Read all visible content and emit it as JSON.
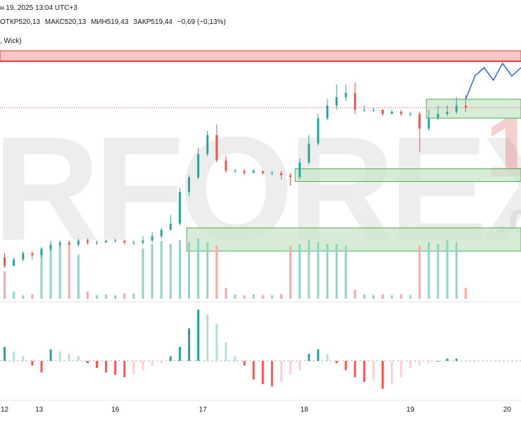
{
  "header": {
    "date_line": "н 19, 2025 13:04 UTC+3",
    "ohlc": {
      "open": "ОТКР520,13",
      "high": "МАКС520,13",
      "low": "МИН519,43",
      "close": "ЗАКР519,44",
      "change": "−0,69 (−0,13%)"
    },
    "indicator_label": ", Wick)"
  },
  "watermark": {
    "text": "RFOREX",
    "suffix": "1",
    "tld": ".c"
  },
  "colors": {
    "up": "#26a69a",
    "down": "#ef5350",
    "vol_up": "#8fd3c9",
    "vol_down": "#f7a9a7",
    "osc_up_strong": "#26a69a",
    "osc_up_weak": "#b2dfdb",
    "osc_down_strong": "#ff5252",
    "osc_down_weak": "#ffcdd2",
    "zone_fill": "#c8e6c9",
    "zone_border": "#4caf50",
    "res_fill": "#f8c6c6",
    "res_border": "#e53935",
    "forecast": "#2962ff"
  },
  "chart_data": {
    "type": "candlestick",
    "x_tick_labels": [
      "12",
      "13",
      "16",
      "17",
      "18",
      "19",
      "20"
    ],
    "candles": [
      [
        0,
        520,
        516,
        522,
        515
      ],
      [
        4,
        516,
        519,
        520,
        518
      ],
      [
        8,
        519,
        522,
        523,
        518
      ],
      [
        12,
        522,
        521,
        523,
        519
      ],
      [
        16,
        521,
        524,
        525,
        520
      ],
      [
        20,
        524,
        526,
        528,
        523
      ],
      [
        24,
        526,
        527,
        528,
        525
      ],
      [
        28,
        527,
        526,
        528,
        526
      ],
      [
        32,
        526,
        528,
        529,
        525
      ],
      [
        36,
        528,
        527,
        529,
        526
      ],
      [
        40,
        527,
        527,
        528,
        526
      ],
      [
        44,
        527,
        528,
        528,
        527
      ],
      [
        48,
        528,
        528,
        529,
        527
      ],
      [
        52,
        528,
        527,
        528,
        526
      ],
      [
        56,
        527,
        527,
        528,
        526
      ],
      [
        60,
        527,
        528,
        530,
        526
      ],
      [
        64,
        528,
        530,
        532,
        527
      ],
      [
        68,
        530,
        533,
        534,
        529
      ],
      [
        72,
        533,
        536,
        540,
        533
      ],
      [
        76,
        536,
        551,
        553,
        535
      ],
      [
        80,
        551,
        558,
        559,
        549
      ],
      [
        84,
        558,
        569,
        572,
        557
      ],
      [
        88,
        569,
        578,
        580,
        568
      ],
      [
        92,
        578,
        566,
        583,
        565
      ],
      [
        96,
        566,
        561,
        568,
        560
      ],
      [
        100,
        561,
        561,
        562,
        560
      ],
      [
        104,
        561,
        560,
        562,
        559
      ],
      [
        108,
        560,
        561,
        562,
        560
      ],
      [
        112,
        561,
        560,
        561,
        559
      ],
      [
        116,
        560,
        560,
        561,
        559
      ],
      [
        120,
        560,
        559,
        561,
        557
      ],
      [
        124,
        559,
        558,
        560,
        554
      ],
      [
        128,
        558,
        565,
        567,
        557
      ],
      [
        132,
        565,
        574,
        578,
        564
      ],
      [
        136,
        574,
        586,
        588,
        573
      ],
      [
        140,
        586,
        592,
        595,
        585
      ],
      [
        144,
        592,
        596,
        602,
        590
      ],
      [
        148,
        596,
        598,
        602,
        594
      ],
      [
        152,
        598,
        590,
        603,
        588
      ],
      [
        156,
        590,
        590,
        592,
        589
      ],
      [
        160,
        590,
        590,
        591,
        589
      ],
      [
        164,
        590,
        588,
        590,
        587
      ],
      [
        168,
        588,
        589,
        590,
        588
      ],
      [
        172,
        589,
        588,
        590,
        587
      ],
      [
        176,
        588,
        588,
        589,
        587
      ],
      [
        180,
        588,
        581,
        589,
        570
      ],
      [
        184,
        581,
        586,
        590,
        580
      ],
      [
        188,
        586,
        588,
        592,
        585
      ],
      [
        192,
        588,
        589,
        592,
        587
      ],
      [
        196,
        589,
        592,
        596,
        588
      ],
      [
        200,
        592,
        591,
        597,
        589
      ]
    ],
    "volume": [
      [
        0,
        0.3
      ],
      [
        4,
        0.08
      ],
      [
        8,
        0.04
      ],
      [
        12,
        0.05
      ],
      [
        16,
        0.55
      ],
      [
        20,
        0.58
      ],
      [
        24,
        0.62
      ],
      [
        28,
        0.6
      ],
      [
        32,
        0.48
      ],
      [
        36,
        0.08
      ],
      [
        40,
        0.04
      ],
      [
        44,
        0.05
      ],
      [
        48,
        0.04
      ],
      [
        52,
        0.06
      ],
      [
        56,
        0.06
      ],
      [
        60,
        0.55
      ],
      [
        64,
        0.6
      ],
      [
        68,
        0.63
      ],
      [
        72,
        0.6
      ],
      [
        76,
        0.64
      ],
      [
        80,
        0.62
      ],
      [
        84,
        0.66
      ],
      [
        88,
        0.62
      ],
      [
        92,
        0.58
      ],
      [
        96,
        0.12
      ],
      [
        100,
        0.05
      ],
      [
        104,
        0.04
      ],
      [
        108,
        0.05
      ],
      [
        112,
        0.04
      ],
      [
        116,
        0.04
      ],
      [
        120,
        0.05
      ],
      [
        124,
        0.58
      ],
      [
        128,
        0.6
      ],
      [
        132,
        0.64
      ],
      [
        136,
        0.62
      ],
      [
        140,
        0.6
      ],
      [
        144,
        0.6
      ],
      [
        148,
        0.58
      ],
      [
        152,
        0.1
      ],
      [
        156,
        0.05
      ],
      [
        160,
        0.04
      ],
      [
        164,
        0.05
      ],
      [
        168,
        0.04
      ],
      [
        172,
        0.05
      ],
      [
        176,
        0.04
      ],
      [
        180,
        0.58
      ],
      [
        184,
        0.62
      ],
      [
        188,
        0.6
      ],
      [
        192,
        0.64
      ],
      [
        196,
        0.62
      ],
      [
        200,
        0.12
      ]
    ],
    "oscillator": [
      [
        0,
        6
      ],
      [
        4,
        4
      ],
      [
        8,
        2
      ],
      [
        12,
        -2
      ],
      [
        16,
        -5
      ],
      [
        20,
        5
      ],
      [
        24,
        4
      ],
      [
        28,
        3
      ],
      [
        32,
        2
      ],
      [
        36,
        -1
      ],
      [
        40,
        -3
      ],
      [
        44,
        -5
      ],
      [
        48,
        -6
      ],
      [
        52,
        -7
      ],
      [
        56,
        -6
      ],
      [
        60,
        -4
      ],
      [
        64,
        -2
      ],
      [
        68,
        -1
      ],
      [
        72,
        2
      ],
      [
        76,
        6
      ],
      [
        80,
        14
      ],
      [
        84,
        22
      ],
      [
        88,
        20
      ],
      [
        92,
        16
      ],
      [
        96,
        8
      ],
      [
        100,
        2
      ],
      [
        104,
        -2
      ],
      [
        108,
        -8
      ],
      [
        112,
        -10
      ],
      [
        116,
        -11
      ],
      [
        120,
        -9
      ],
      [
        124,
        -6
      ],
      [
        128,
        -4
      ],
      [
        132,
        3
      ],
      [
        136,
        5
      ],
      [
        140,
        3
      ],
      [
        144,
        -1
      ],
      [
        148,
        -4
      ],
      [
        152,
        -7
      ],
      [
        156,
        -9
      ],
      [
        160,
        -8
      ],
      [
        164,
        -12
      ],
      [
        168,
        -10
      ],
      [
        172,
        -7
      ],
      [
        176,
        -3
      ],
      [
        180,
        -2
      ],
      [
        184,
        -1
      ],
      [
        188,
        0
      ],
      [
        192,
        1
      ],
      [
        196,
        1
      ],
      [
        200,
        0
      ]
    ],
    "demand_zones": [
      {
        "x_start": 79,
        "y_low": 523,
        "y_high": 534
      },
      {
        "x_start": 126,
        "y_low": 556,
        "y_high": 562
      },
      {
        "x_start": 183,
        "y_low": 586,
        "y_high": 595
      }
    ],
    "resistance_zone": {
      "y_low": 613,
      "y_high": 618
    },
    "forecast": [
      [
        200,
        595
      ],
      [
        204,
        606
      ],
      [
        208,
        610
      ],
      [
        212,
        604
      ],
      [
        216,
        612
      ],
      [
        220,
        606
      ],
      [
        224,
        610
      ]
    ],
    "ylim_price": [
      500,
      622
    ],
    "xlim": [
      -2,
      224
    ]
  }
}
